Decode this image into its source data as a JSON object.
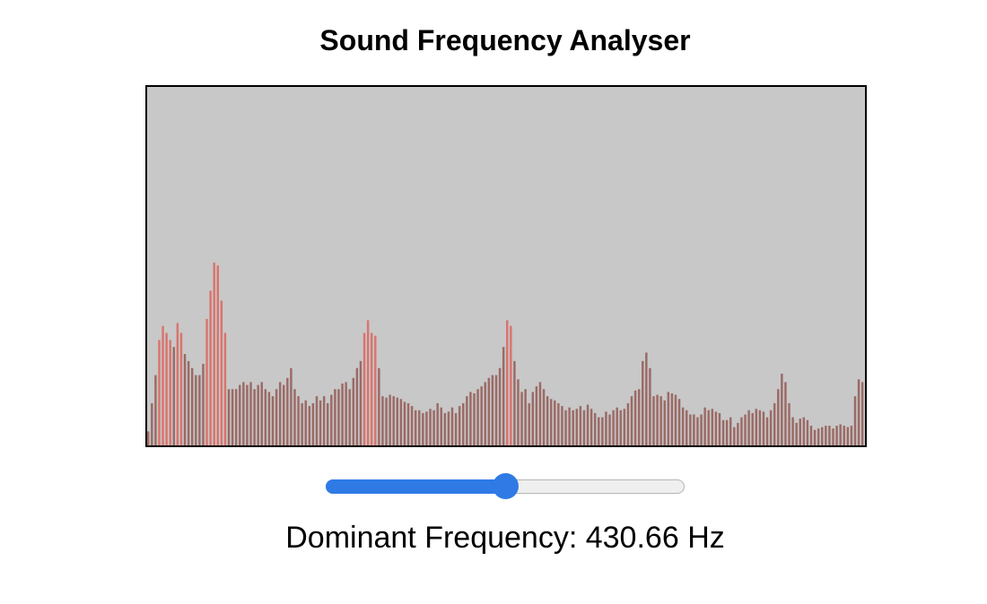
{
  "app": {
    "title": "Sound Frequency Analyser"
  },
  "slider": {
    "value": 0.5,
    "fill_color": "#2f7ae5",
    "track_color": "#efefef"
  },
  "readout": {
    "label": "Dominant Frequency:",
    "value": "430.66",
    "unit": "Hz"
  },
  "chart_data": {
    "type": "bar",
    "background": "#c8c8c8",
    "bar_color": "#9b6a66",
    "peak_color": "#d9746d",
    "ylim": [
      0,
      255
    ],
    "values": [
      10,
      30,
      50,
      75,
      85,
      80,
      75,
      70,
      87,
      80,
      65,
      60,
      55,
      50,
      50,
      58,
      90,
      110,
      130,
      128,
      103,
      80,
      40,
      40,
      40,
      43,
      45,
      43,
      45,
      40,
      43,
      45,
      40,
      38,
      35,
      40,
      45,
      43,
      48,
      55,
      40,
      35,
      30,
      32,
      28,
      30,
      35,
      32,
      35,
      30,
      36,
      40,
      40,
      44,
      45,
      40,
      48,
      55,
      60,
      80,
      89,
      80,
      78,
      55,
      35,
      34,
      36,
      35,
      34,
      33,
      31,
      30,
      28,
      25,
      25,
      23,
      24,
      26,
      25,
      30,
      27,
      23,
      24,
      27,
      23,
      28,
      30,
      35,
      38,
      37,
      40,
      42,
      45,
      48,
      50,
      50,
      55,
      70,
      89,
      85,
      60,
      47,
      38,
      40,
      30,
      38,
      42,
      45,
      40,
      35,
      33,
      32,
      30,
      28,
      25,
      27,
      25,
      26,
      28,
      25,
      29,
      26,
      23,
      20,
      20,
      24,
      22,
      25,
      27,
      25,
      26,
      30,
      35,
      39,
      40,
      60,
      66,
      55,
      35,
      36,
      35,
      32,
      38,
      37,
      36,
      33,
      27,
      25,
      22,
      22,
      20,
      22,
      27,
      25,
      26,
      24,
      23,
      18,
      18,
      20,
      13,
      16,
      20,
      22,
      25,
      23,
      26,
      25,
      24,
      20,
      25,
      30,
      40,
      51,
      45,
      30,
      20,
      16,
      19,
      20,
      18,
      14,
      11,
      12,
      13,
      14,
      14,
      12,
      14,
      15,
      14,
      13,
      14,
      35,
      47,
      45
    ]
  }
}
